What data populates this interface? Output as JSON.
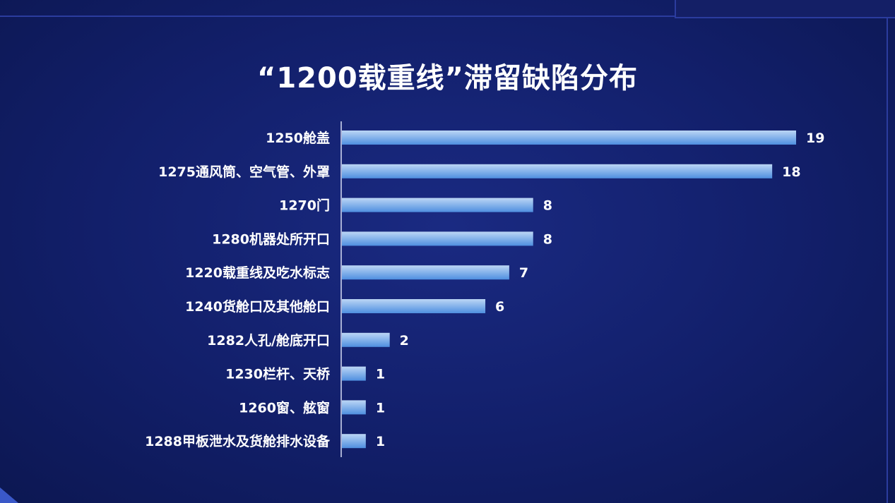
{
  "chart_data": {
    "type": "bar",
    "orientation": "horizontal",
    "title": "“1200载重线”滞留缺陷分布",
    "categories": [
      "1250舱盖",
      "1275通风筒、空气管、外罩",
      "1270门",
      "1280机器处所开口",
      "1220载重线及吃水标志",
      "1240货舱口及其他舱口",
      "1282人孔/舱底开口",
      "1230栏杆、天桥",
      "1260窗、舷窗",
      "1288甲板泄水及货舱排水设备"
    ],
    "values": [
      19,
      18,
      8,
      8,
      7,
      6,
      2,
      1,
      1,
      1
    ],
    "xlim": [
      0,
      19
    ],
    "grid": false,
    "legend": "none"
  },
  "colors": {
    "bar_top": "#bcd6f5",
    "bar_bottom": "#4f8fe0",
    "axis": "#d8def5",
    "text": "#ffffff"
  }
}
